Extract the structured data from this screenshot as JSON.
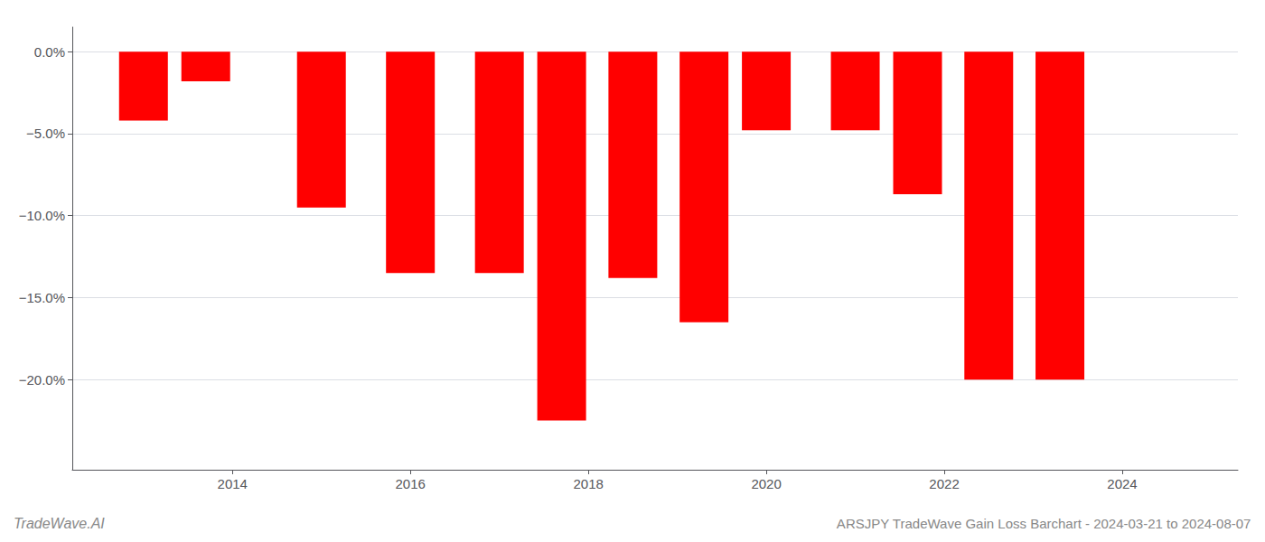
{
  "chart_data": {
    "type": "bar",
    "title": "ARSJPY TradeWave Gain Loss Barchart - 2024-03-21 to 2024-08-07",
    "annotations": [
      "TradeWave.AI"
    ],
    "x": [
      2013,
      2013.7,
      2015,
      2016,
      2017,
      2017.7,
      2018.5,
      2019.3,
      2020,
      2021,
      2021.7,
      2022.5,
      2023.3
    ],
    "values": [
      -4.2,
      -1.8,
      -9.5,
      -13.5,
      -13.5,
      -22.5,
      -13.8,
      -16.5,
      -4.8,
      -4.8,
      -8.7,
      -20.0,
      -20.0
    ],
    "color": "#ff0000",
    "xlim": [
      2012.2,
      2025.3
    ],
    "xticks": [
      2014,
      2016,
      2018,
      2020,
      2022,
      2024
    ],
    "ylim": [
      -25.5,
      1.5
    ],
    "yticks": [
      {
        "value": 0.0,
        "label": "0.0%"
      },
      {
        "value": -5.0,
        "label": "−5.0%"
      },
      {
        "value": -10.0,
        "label": "−10.0%"
      },
      {
        "value": -15.0,
        "label": "−15.0%"
      },
      {
        "value": -20.0,
        "label": "−20.0%"
      }
    ],
    "grid": true
  }
}
